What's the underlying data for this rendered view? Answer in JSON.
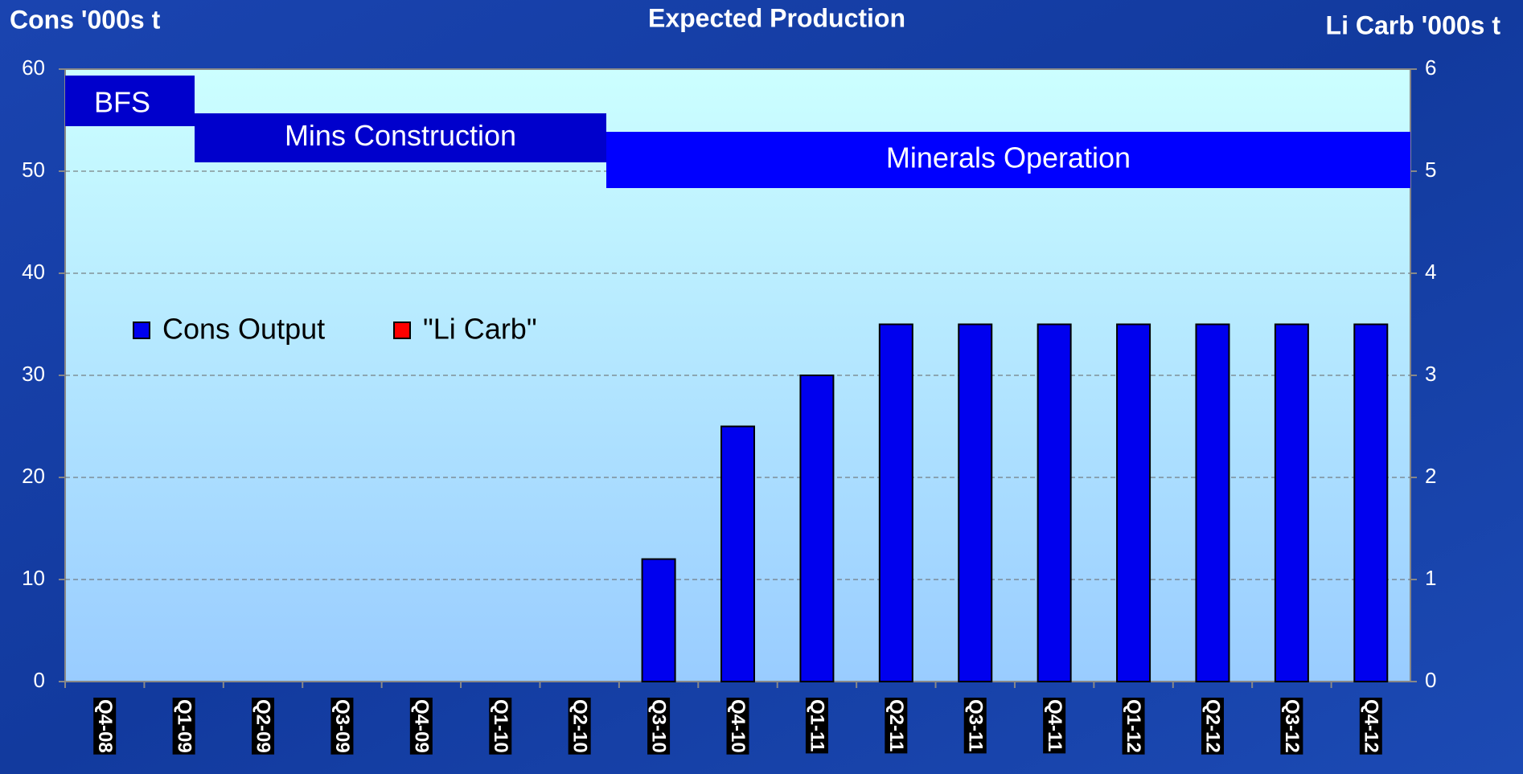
{
  "chart_data": {
    "type": "bar",
    "title": "Expected Production",
    "ylabel": "Cons '000s t",
    "y2label": "Li Carb '000s t",
    "categories": [
      "Q4-08",
      "Q1-09",
      "Q2-09",
      "Q3-09",
      "Q4-09",
      "Q1-10",
      "Q2-10",
      "Q3-10",
      "Q4-10",
      "Q1-11",
      "Q2-11",
      "Q3-11",
      "Q4-11",
      "Q1-12",
      "Q2-12",
      "Q3-12",
      "Q4-12"
    ],
    "series": [
      {
        "name": "Cons Output",
        "color": "#0000ee",
        "values": [
          0,
          0,
          0,
          0,
          0,
          0,
          0,
          12,
          25,
          30,
          35,
          35,
          35,
          35,
          35,
          35,
          35
        ]
      },
      {
        "name": "\"Li Carb\"",
        "color": "#ff0000",
        "axis": "y2",
        "values": [
          0,
          0,
          0,
          0,
          0,
          0,
          0,
          0,
          0,
          0,
          0,
          0,
          0,
          0,
          0,
          0,
          0
        ]
      }
    ],
    "ylim": [
      0,
      60
    ],
    "yticks": [
      0,
      10,
      20,
      30,
      40,
      50,
      60
    ],
    "y2lim": [
      0,
      6
    ],
    "y2ticks": [
      0,
      1,
      2,
      3,
      4,
      5,
      6
    ],
    "grid": true,
    "annotations": [
      {
        "text": "BFS"
      },
      {
        "text": "Mins Construction"
      },
      {
        "text": "Minerals Operation"
      }
    ]
  }
}
